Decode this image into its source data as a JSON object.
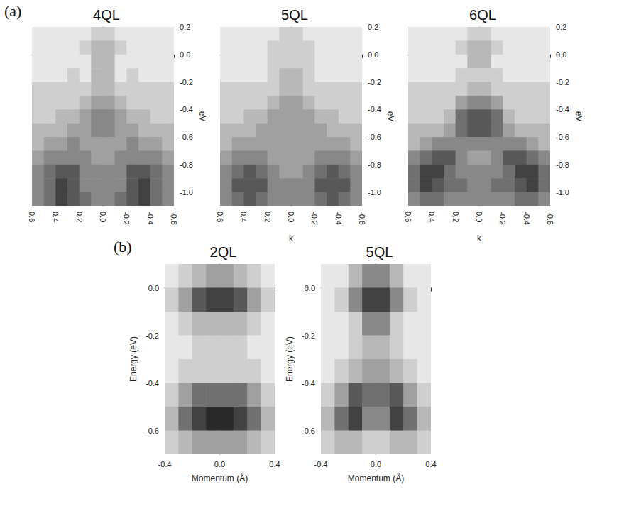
{
  "chart_data": [
    {
      "type": "heatmap",
      "title": "4QL",
      "annotation": "(a)",
      "ylabel": "eV",
      "x": [
        0.55,
        0.45,
        0.35,
        0.25,
        0.15,
        0.05,
        -0.05,
        -0.15,
        -0.25,
        -0.35,
        -0.45,
        -0.55
      ],
      "y": [
        0.15,
        0.05,
        -0.05,
        -0.15,
        -0.25,
        -0.35,
        -0.45,
        -0.55,
        -0.65,
        -0.75,
        -0.85,
        -0.95,
        -1.05
      ],
      "z": [
        [
          1,
          1,
          1,
          1,
          1,
          2,
          2,
          1,
          1,
          1,
          1,
          1
        ],
        [
          1,
          1,
          1,
          1,
          2,
          3,
          3,
          2,
          1,
          1,
          1,
          1
        ],
        [
          1,
          1,
          1,
          1,
          1,
          3,
          3,
          1,
          1,
          1,
          1,
          1
        ],
        [
          1,
          1,
          1,
          2,
          1,
          3,
          3,
          1,
          2,
          1,
          1,
          1
        ],
        [
          2,
          2,
          2,
          2,
          2,
          3,
          3,
          2,
          2,
          2,
          2,
          2
        ],
        [
          2,
          2,
          2,
          2,
          3,
          4,
          4,
          3,
          2,
          2,
          2,
          2
        ],
        [
          2,
          2,
          3,
          3,
          4,
          5,
          5,
          4,
          3,
          3,
          2,
          2
        ],
        [
          3,
          3,
          3,
          4,
          4,
          5,
          5,
          4,
          4,
          3,
          3,
          3
        ],
        [
          3,
          4,
          4,
          5,
          4,
          4,
          4,
          4,
          5,
          4,
          4,
          3
        ],
        [
          4,
          5,
          5,
          5,
          5,
          4,
          4,
          5,
          5,
          5,
          5,
          4
        ],
        [
          5,
          6,
          7,
          7,
          5,
          5,
          5,
          5,
          7,
          7,
          6,
          5
        ],
        [
          5,
          6,
          8,
          7,
          5,
          5,
          5,
          5,
          7,
          8,
          6,
          5
        ],
        [
          5,
          6,
          8,
          7,
          6,
          5,
          5,
          6,
          7,
          8,
          6,
          5
        ]
      ],
      "zlim": [
        0,
        10
      ],
      "color": "#111111",
      "xlim": [
        0.6,
        -0.6
      ],
      "ylim": [
        -1.1,
        0.2
      ],
      "xticks": [
        0.6,
        0.4,
        0.2,
        {
          "value": 0,
          "label": "0.0"
        },
        -0.2,
        -0.4,
        -0.6
      ],
      "yticks": [
        0.2,
        {
          "value": 0,
          "label": "0.0"
        },
        -0.2,
        -0.4,
        -0.6,
        -0.8,
        {
          "value": -1,
          "label": "-1.0"
        }
      ]
    },
    {
      "type": "heatmap",
      "title": "5QL",
      "ylabel": "eV",
      "xlabel": "k",
      "x": [
        0.55,
        0.45,
        0.35,
        0.25,
        0.15,
        0.05,
        -0.05,
        -0.15,
        -0.25,
        -0.35,
        -0.45,
        -0.55
      ],
      "y": [
        0.15,
        0.05,
        -0.05,
        -0.15,
        -0.25,
        -0.35,
        -0.45,
        -0.55,
        -0.65,
        -0.75,
        -0.85,
        -0.95,
        -1.05
      ],
      "z": [
        [
          1,
          1,
          1,
          1,
          1,
          2,
          2,
          1,
          1,
          1,
          1,
          1
        ],
        [
          1,
          1,
          1,
          1,
          2,
          2,
          2,
          2,
          1,
          1,
          1,
          1
        ],
        [
          1,
          1,
          1,
          1,
          2,
          2,
          2,
          2,
          1,
          1,
          1,
          1
        ],
        [
          1,
          1,
          1,
          1,
          2,
          3,
          3,
          2,
          1,
          1,
          1,
          1
        ],
        [
          2,
          2,
          2,
          2,
          2,
          3,
          3,
          2,
          2,
          2,
          2,
          2
        ],
        [
          2,
          2,
          2,
          2,
          3,
          4,
          4,
          3,
          2,
          2,
          2,
          2
        ],
        [
          2,
          2,
          3,
          3,
          4,
          4,
          4,
          4,
          3,
          3,
          2,
          2
        ],
        [
          3,
          3,
          3,
          4,
          4,
          4,
          4,
          4,
          4,
          3,
          3,
          3
        ],
        [
          3,
          4,
          4,
          4,
          4,
          4,
          4,
          4,
          4,
          4,
          4,
          3
        ],
        [
          4,
          5,
          5,
          5,
          4,
          4,
          4,
          4,
          5,
          5,
          5,
          4
        ],
        [
          5,
          6,
          7,
          6,
          5,
          4,
          4,
          5,
          6,
          7,
          6,
          5
        ],
        [
          5,
          7,
          7,
          7,
          5,
          5,
          5,
          5,
          7,
          7,
          7,
          5
        ],
        [
          5,
          6,
          7,
          6,
          5,
          5,
          5,
          5,
          6,
          7,
          6,
          5
        ]
      ],
      "zlim": [
        0,
        10
      ],
      "color": "#111111",
      "xlim": [
        0.6,
        -0.6
      ],
      "ylim": [
        -1.1,
        0.2
      ],
      "xticks": [
        0.6,
        0.4,
        0.2,
        {
          "value": 0,
          "label": "0.0"
        },
        -0.2,
        -0.4,
        -0.6
      ],
      "yticks": [
        0.2,
        {
          "value": 0,
          "label": "0.0"
        },
        -0.2,
        -0.4,
        -0.6,
        -0.8,
        {
          "value": -1,
          "label": "-1.0"
        }
      ]
    },
    {
      "type": "heatmap",
      "title": "6QL",
      "ylabel": "eV",
      "xlabel": "k",
      "x": [
        0.55,
        0.45,
        0.35,
        0.25,
        0.15,
        0.05,
        -0.05,
        -0.15,
        -0.25,
        -0.35,
        -0.45,
        -0.55
      ],
      "y": [
        0.15,
        0.05,
        -0.05,
        -0.15,
        -0.25,
        -0.35,
        -0.45,
        -0.55,
        -0.65,
        -0.75,
        -0.85,
        -0.95,
        -1.05
      ],
      "z": [
        [
          1,
          1,
          1,
          1,
          1,
          2,
          2,
          1,
          1,
          1,
          1,
          1
        ],
        [
          1,
          1,
          1,
          1,
          2,
          3,
          3,
          2,
          1,
          1,
          1,
          1
        ],
        [
          1,
          1,
          1,
          1,
          1,
          3,
          3,
          1,
          1,
          1,
          1,
          1
        ],
        [
          1,
          1,
          1,
          1,
          2,
          2,
          2,
          2,
          1,
          1,
          1,
          1
        ],
        [
          2,
          2,
          2,
          2,
          2,
          3,
          3,
          2,
          2,
          2,
          2,
          2
        ],
        [
          2,
          2,
          2,
          2,
          4,
          5,
          5,
          4,
          2,
          2,
          2,
          2
        ],
        [
          2,
          2,
          2,
          3,
          6,
          7,
          7,
          6,
          3,
          2,
          2,
          2
        ],
        [
          3,
          3,
          3,
          4,
          6,
          7,
          7,
          6,
          4,
          3,
          3,
          3
        ],
        [
          3,
          4,
          5,
          5,
          5,
          5,
          5,
          5,
          5,
          5,
          4,
          3
        ],
        [
          5,
          6,
          7,
          7,
          5,
          4,
          4,
          5,
          7,
          7,
          6,
          5
        ],
        [
          6,
          8,
          8,
          6,
          5,
          5,
          5,
          5,
          6,
          8,
          8,
          6
        ],
        [
          6,
          8,
          7,
          6,
          6,
          5,
          5,
          6,
          6,
          7,
          8,
          6
        ],
        [
          5,
          6,
          6,
          5,
          5,
          5,
          5,
          5,
          5,
          6,
          6,
          5
        ]
      ],
      "zlim": [
        0,
        10
      ],
      "color": "#111111",
      "xlim": [
        0.6,
        -0.6
      ],
      "ylim": [
        -1.1,
        0.2
      ],
      "xticks": [
        0.6,
        0.4,
        0.2,
        {
          "value": 0,
          "label": "0.0"
        },
        -0.2,
        -0.4,
        -0.6
      ],
      "yticks": [
        0.2,
        {
          "value": 0,
          "label": "0.0"
        },
        -0.2,
        -0.4,
        -0.6,
        -0.8,
        {
          "value": -1,
          "label": "-1.0"
        }
      ]
    },
    {
      "type": "heatmap",
      "title": "2QL",
      "annotation": "(b)",
      "xlabel": "Momentum (Å)",
      "ylabel": "Energy (eV)",
      "x": [
        -0.35,
        -0.25,
        -0.15,
        -0.05,
        0.05,
        0.15,
        0.25,
        0.35
      ],
      "y": [
        0.05,
        -0.05,
        -0.15,
        -0.25,
        -0.35,
        -0.45,
        -0.55,
        -0.65
      ],
      "z": [
        [
          1,
          2,
          3,
          4,
          4,
          3,
          2,
          1
        ],
        [
          2,
          4,
          7,
          8,
          8,
          7,
          4,
          2
        ],
        [
          1,
          2,
          3,
          3,
          3,
          3,
          2,
          1
        ],
        [
          1,
          1,
          2,
          2,
          2,
          2,
          1,
          1
        ],
        [
          1,
          2,
          2,
          2,
          2,
          2,
          2,
          1
        ],
        [
          2,
          4,
          6,
          6,
          6,
          6,
          4,
          2
        ],
        [
          3,
          6,
          8,
          9,
          9,
          8,
          6,
          3
        ],
        [
          2,
          3,
          4,
          4,
          4,
          4,
          3,
          2
        ]
      ],
      "zlim": [
        0,
        10
      ],
      "color": "#111111",
      "xlim": [
        -0.4,
        0.4
      ],
      "ylim": [
        -0.7,
        0.1
      ],
      "xticks": [
        -0.4,
        {
          "value": 0,
          "label": "0.0"
        },
        0.4
      ],
      "yticks": [
        {
          "value": 0,
          "label": "0.0"
        },
        -0.2,
        -0.4,
        -0.6
      ]
    },
    {
      "type": "heatmap",
      "title": "5QL",
      "xlabel": "Momentum (Å)",
      "ylabel": "Energy (eV)",
      "x": [
        -0.35,
        -0.25,
        -0.15,
        -0.05,
        0.05,
        0.15,
        0.25,
        0.35
      ],
      "y": [
        0.05,
        -0.05,
        -0.15,
        -0.25,
        -0.35,
        -0.45,
        -0.55,
        -0.65
      ],
      "z": [
        [
          1,
          1,
          3,
          5,
          5,
          3,
          1,
          1
        ],
        [
          1,
          2,
          5,
          8,
          8,
          5,
          2,
          1
        ],
        [
          1,
          1,
          2,
          5,
          5,
          2,
          1,
          1
        ],
        [
          1,
          1,
          2,
          3,
          3,
          2,
          1,
          1
        ],
        [
          1,
          2,
          3,
          4,
          4,
          3,
          2,
          1
        ],
        [
          2,
          4,
          7,
          6,
          6,
          7,
          4,
          2
        ],
        [
          3,
          6,
          8,
          5,
          5,
          8,
          6,
          3
        ],
        [
          2,
          3,
          3,
          2,
          2,
          3,
          3,
          2
        ]
      ],
      "zlim": [
        0,
        10
      ],
      "color": "#111111",
      "xlim": [
        -0.4,
        0.4
      ],
      "ylim": [
        -0.7,
        0.1
      ],
      "xticks": [
        -0.4,
        {
          "value": 0,
          "label": "0.0"
        },
        0.4
      ],
      "yticks": [
        {
          "value": 0,
          "label": "0.0"
        },
        -0.2,
        -0.4,
        -0.6
      ]
    }
  ]
}
